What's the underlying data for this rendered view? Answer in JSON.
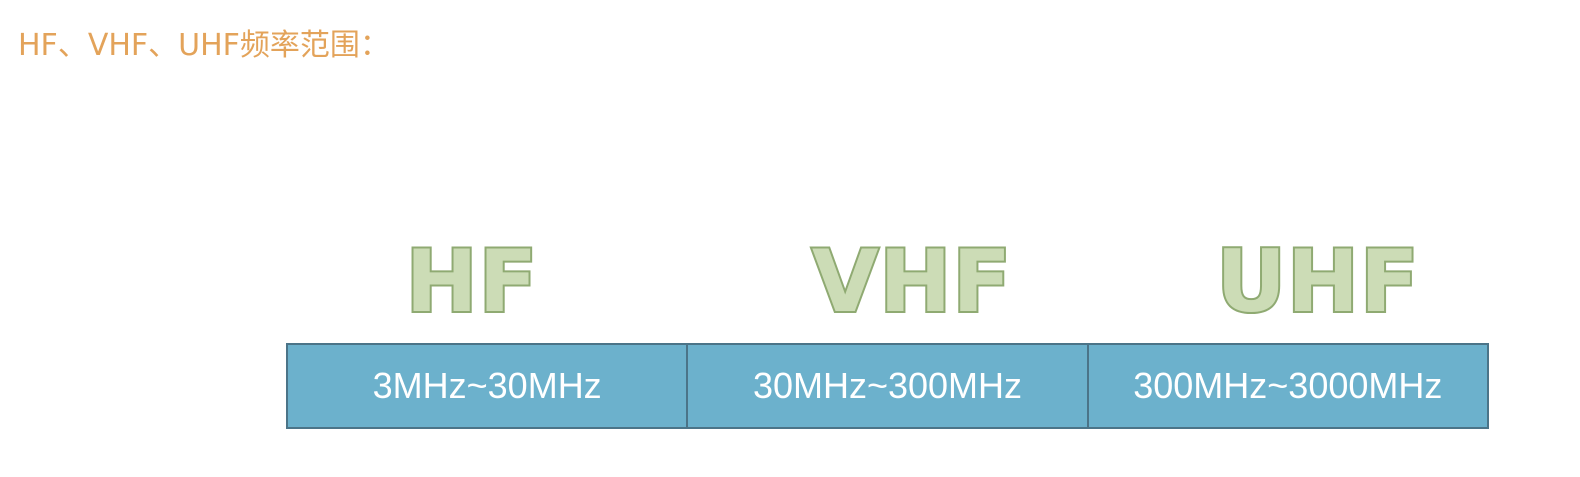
{
  "title": "HF、VHF、UHF频率范围：",
  "colors": {
    "title": "#e3a35a",
    "label_fill": "#ccdcb6",
    "label_stroke": "#8faa72",
    "table_fill": "#6cb1cc",
    "table_border": "#4b7488",
    "table_text": "#ffffff"
  },
  "bands": [
    {
      "label": "HF",
      "range": "3MHz~30MHz"
    },
    {
      "label": "VHF",
      "range": "30MHz~300MHz"
    },
    {
      "label": "UHF",
      "range": "300MHz~3000MHz"
    }
  ]
}
